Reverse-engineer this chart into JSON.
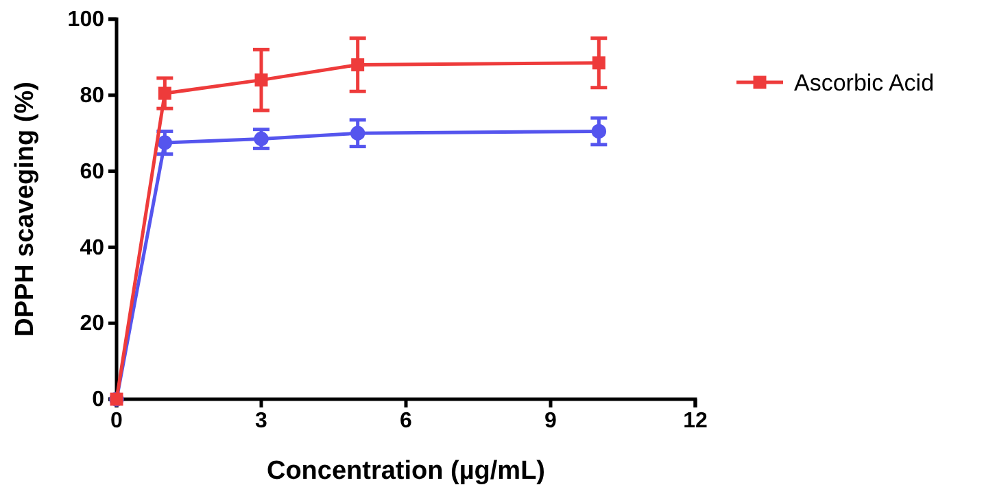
{
  "chart_data": {
    "type": "line",
    "xlabel": "Concentration (µg/mL)",
    "ylabel": "DPPH scaveging (%)",
    "x": [
      0,
      1,
      3,
      5,
      10
    ],
    "xlim": [
      0,
      12
    ],
    "xticks": [
      0,
      3,
      6,
      9,
      12
    ],
    "ylim": [
      0,
      100
    ],
    "yticks": [
      0,
      20,
      40,
      60,
      80,
      100
    ],
    "grid": false,
    "legend": "right",
    "line_style": "solid",
    "series": [
      {
        "color": "#5555ee",
        "marker": "circle",
        "values": [
          0,
          67.5,
          68.5,
          70,
          70.5
        ],
        "errors": [
          null,
          3,
          2.5,
          3.5,
          3.5
        ]
      },
      {
        "name": "Ascorbic Acid",
        "color": "#ee3b3b",
        "marker": "square",
        "values": [
          0,
          80.5,
          84,
          88,
          88.5
        ],
        "errors": [
          null,
          4,
          8,
          7,
          6.5
        ]
      }
    ]
  }
}
